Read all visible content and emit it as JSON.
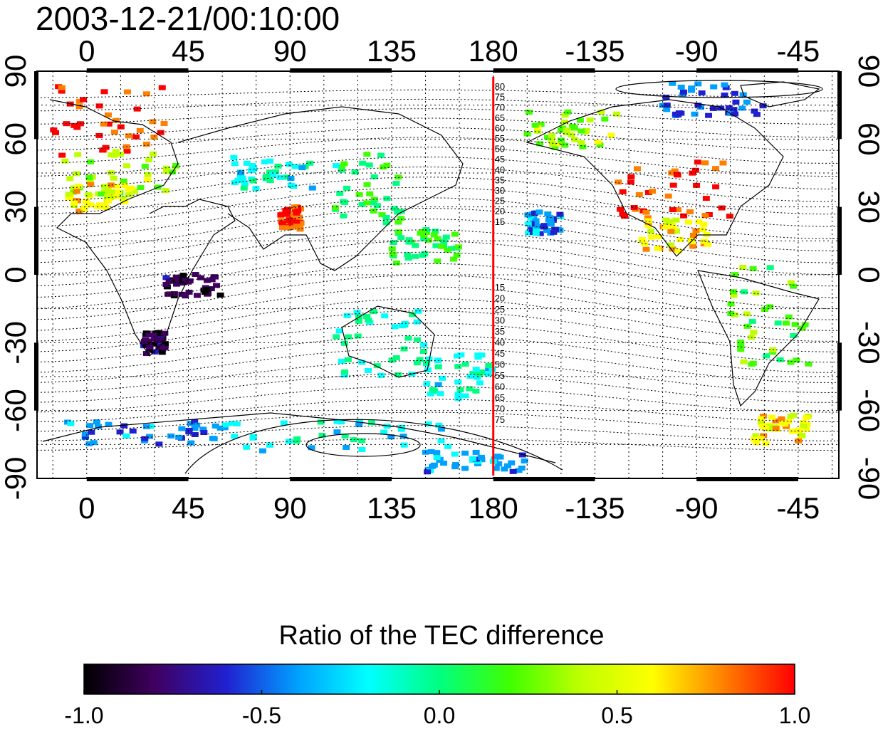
{
  "timestamp": "2003-12-21/00:10:00",
  "map": {
    "top_lon_ticks": [
      "0",
      "45",
      "90",
      "135",
      "180",
      "-135",
      "-90",
      "-45"
    ],
    "bottom_lon_ticks": [
      "0",
      "45",
      "90",
      "135",
      "180",
      "-135",
      "-90",
      "-45"
    ],
    "lon_values": [
      0,
      45,
      90,
      135,
      180,
      225,
      270,
      315
    ],
    "left_lat_ticks": [
      "90",
      "60",
      "30",
      "0",
      "-30",
      "-60",
      "-90"
    ],
    "right_lat_ticks": [
      "90",
      "60",
      "30",
      "0",
      "-30",
      "-60",
      "-90"
    ],
    "lat_values": [
      90,
      60,
      30,
      0,
      -30,
      -60,
      -90
    ],
    "lon_range": [
      -22,
      333
    ],
    "lat_range": [
      -90,
      90
    ],
    "grid": "dotted",
    "highlight_meridian": {
      "lon": 180,
      "color": "#ff0000"
    },
    "north_contour_labels": [
      "80",
      "75",
      "70",
      "65",
      "60",
      "55",
      "50",
      "45",
      "40",
      "35",
      "30",
      "25",
      "20",
      "15"
    ],
    "south_contour_labels": [
      "15",
      "20",
      "25",
      "30",
      "35",
      "40",
      "45",
      "50",
      "55",
      "60",
      "65",
      "70",
      "75"
    ]
  },
  "colorbar": {
    "title": "Ratio of the TEC difference",
    "tick_labels": [
      "-1.0",
      "-0.5",
      "0.0",
      "0.5",
      "1.0"
    ],
    "tick_values": [
      -1.0,
      -0.5,
      0.0,
      0.5,
      1.0
    ],
    "range": [
      -1.0,
      1.0
    ],
    "colors": [
      "#000000",
      "#400060",
      "#2020d0",
      "#00a0ff",
      "#00ffff",
      "#00ff80",
      "#40ff00",
      "#c0ff00",
      "#ffff00",
      "#ff8000",
      "#ff0000"
    ]
  },
  "chart_data": {
    "type": "heatmap",
    "title": "2003-12-21/00:10:00",
    "colorbar_label": "Ratio of the TEC difference",
    "value_range": [
      -1.0,
      1.0
    ],
    "regions": [
      {
        "lon": [
          -15,
          35
        ],
        "lat": [
          52,
          85
        ],
        "value": 0.95
      },
      {
        "lon": [
          -10,
          40
        ],
        "lat": [
          35,
          55
        ],
        "value": 0.35
      },
      {
        "lon": [
          -8,
          20
        ],
        "lat": [
          28,
          40
        ],
        "value": 0.6
      },
      {
        "lon": [
          65,
          100
        ],
        "lat": [
          38,
          52
        ],
        "value": -0.15
      },
      {
        "lon": [
          85,
          95
        ],
        "lat": [
          20,
          30
        ],
        "value": 0.95
      },
      {
        "lon": [
          110,
          140
        ],
        "lat": [
          22,
          55
        ],
        "value": 0.05
      },
      {
        "lon": [
          135,
          165
        ],
        "lat": [
          5,
          20
        ],
        "value": 0.1
      },
      {
        "lon": [
          110,
          150
        ],
        "lat": [
          -45,
          -15
        ],
        "value": -0.1
      },
      {
        "lon": [
          150,
          180
        ],
        "lat": [
          -55,
          -35
        ],
        "value": -0.15
      },
      {
        "lon": [
          195,
          210
        ],
        "lat": [
          18,
          28
        ],
        "value": -0.4
      },
      {
        "lon": [
          195,
          235
        ],
        "lat": [
          55,
          72
        ],
        "value": 0.35
      },
      {
        "lon": [
          235,
          285
        ],
        "lat": [
          25,
          50
        ],
        "value": 0.9
      },
      {
        "lon": [
          245,
          275
        ],
        "lat": [
          10,
          25
        ],
        "value": 0.6
      },
      {
        "lon": [
          255,
          300
        ],
        "lat": [
          70,
          85
        ],
        "value": -0.55
      },
      {
        "lon": [
          285,
          320
        ],
        "lat": [
          -40,
          5
        ],
        "value": 0.2
      },
      {
        "lon": [
          -10,
          60
        ],
        "lat": [
          -75,
          -65
        ],
        "value": -0.45
      },
      {
        "lon": [
          60,
          160
        ],
        "lat": [
          -78,
          -65
        ],
        "value": -0.2
      },
      {
        "lon": [
          150,
          195
        ],
        "lat": [
          -88,
          -78
        ],
        "value": -0.4
      },
      {
        "lon": [
          295,
          320
        ],
        "lat": [
          -75,
          -62
        ],
        "value": 0.6
      },
      {
        "lon": [
          25,
          35
        ],
        "lat": [
          -35,
          -25
        ],
        "value": -0.85
      },
      {
        "lon": [
          35,
          60
        ],
        "lat": [
          -10,
          0
        ],
        "value": -0.85
      }
    ]
  }
}
